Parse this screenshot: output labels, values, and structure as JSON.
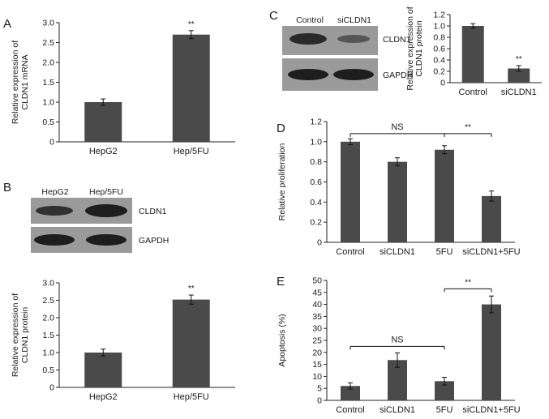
{
  "colors": {
    "bar": "#4a4a4a",
    "axis": "#222222",
    "blot_bg": "#9a9a9a",
    "band": "#1e1e1e"
  },
  "panels": {
    "A": {
      "letter": "A"
    },
    "B": {
      "letter": "B"
    },
    "C": {
      "letter": "C"
    },
    "D": {
      "letter": "D"
    },
    "E": {
      "letter": "E"
    }
  },
  "blots": {
    "B": {
      "lanes": [
        "HepG2",
        "Hep/5FU"
      ],
      "rows": [
        "CLDN1",
        "GAPDH"
      ],
      "band_intensity": [
        [
          0.85,
          1.0
        ],
        [
          1.0,
          1.0
        ]
      ]
    },
    "C": {
      "lanes": [
        "Control",
        "siCLDN1"
      ],
      "rows": [
        "CLDN1",
        "GAPDH"
      ],
      "band_intensity": [
        [
          0.95,
          0.55
        ],
        [
          1.0,
          1.0
        ]
      ]
    }
  },
  "chart_data": [
    {
      "id": "A",
      "type": "bar",
      "categories": [
        "HepG2",
        "Hep/5FU"
      ],
      "values": [
        1.0,
        2.7
      ],
      "errors": [
        0.08,
        0.1
      ],
      "ylabel_lines": [
        "Relative expression of",
        "CLDN1 mRNA"
      ],
      "ylim": [
        0,
        3.0
      ],
      "yticks": [
        "0",
        "0.5",
        "1.0",
        "1.5",
        "2.0",
        "2.5",
        "3.0"
      ],
      "annotations": [
        {
          "text": "**",
          "category": 1
        }
      ],
      "grid": false,
      "legend": "none"
    },
    {
      "id": "B",
      "type": "bar",
      "categories": [
        "HepG2",
        "Hep/5FU"
      ],
      "values": [
        1.0,
        2.52
      ],
      "errors": [
        0.1,
        0.13
      ],
      "ylabel_lines": [
        "Relative expression of",
        "CLDN1 protein"
      ],
      "ylim": [
        0,
        3.0
      ],
      "yticks": [
        "0",
        "0.5",
        "1.0",
        "1.5",
        "2.0",
        "2.5",
        "3.0"
      ],
      "annotations": [
        {
          "text": "**",
          "category": 1
        }
      ],
      "grid": false,
      "legend": "none"
    },
    {
      "id": "C",
      "type": "bar",
      "categories": [
        "Control",
        "siCLDN1"
      ],
      "values": [
        1.0,
        0.25
      ],
      "errors": [
        0.04,
        0.05
      ],
      "ylabel_lines": [
        "Relative expression of",
        "CLDN1 protein"
      ],
      "ylim": [
        0,
        1.2
      ],
      "yticks": [
        "0",
        "0.2",
        "0.4",
        "0.6",
        "0.8",
        "1.0",
        "1.2"
      ],
      "annotations": [
        {
          "text": "**",
          "category": 1
        }
      ],
      "grid": false,
      "legend": "none"
    },
    {
      "id": "D",
      "type": "bar",
      "categories": [
        "Control",
        "siCLDN1",
        "5FU",
        "siCLDN1+5FU"
      ],
      "values": [
        1.0,
        0.8,
        0.92,
        0.46
      ],
      "errors": [
        0.03,
        0.04,
        0.04,
        0.05
      ],
      "ylabel_lines": [
        "Relative proliferation"
      ],
      "ylim": [
        0,
        1.2
      ],
      "yticks": [
        "0",
        "0.2",
        "0.4",
        "0.6",
        "0.8",
        "1.0",
        "1.2"
      ],
      "brackets": [
        {
          "from": 0,
          "to": 2,
          "y": 1.08,
          "text": "NS"
        },
        {
          "from": 2,
          "to": 3,
          "y": 1.08,
          "text": "**"
        }
      ],
      "grid": false,
      "legend": "none"
    },
    {
      "id": "E",
      "type": "bar",
      "categories": [
        "Control",
        "siCLDN1",
        "5FU",
        "siCLDN1+5FU"
      ],
      "values": [
        6.0,
        16.8,
        8.0,
        40.0
      ],
      "errors": [
        1.3,
        3.0,
        1.6,
        3.5
      ],
      "ylabel_lines": [
        "Apoptosis (%)"
      ],
      "ylim": [
        0,
        50
      ],
      "yticks": [
        "0",
        "5",
        "10",
        "15",
        "20",
        "25",
        "30",
        "35",
        "40",
        "45",
        "50"
      ],
      "brackets": [
        {
          "from": 0,
          "to": 2,
          "y": 22.5,
          "text": "NS"
        },
        {
          "from": 2,
          "to": 3,
          "y": 46.5,
          "text": "**"
        }
      ],
      "grid": false,
      "legend": "none"
    }
  ]
}
